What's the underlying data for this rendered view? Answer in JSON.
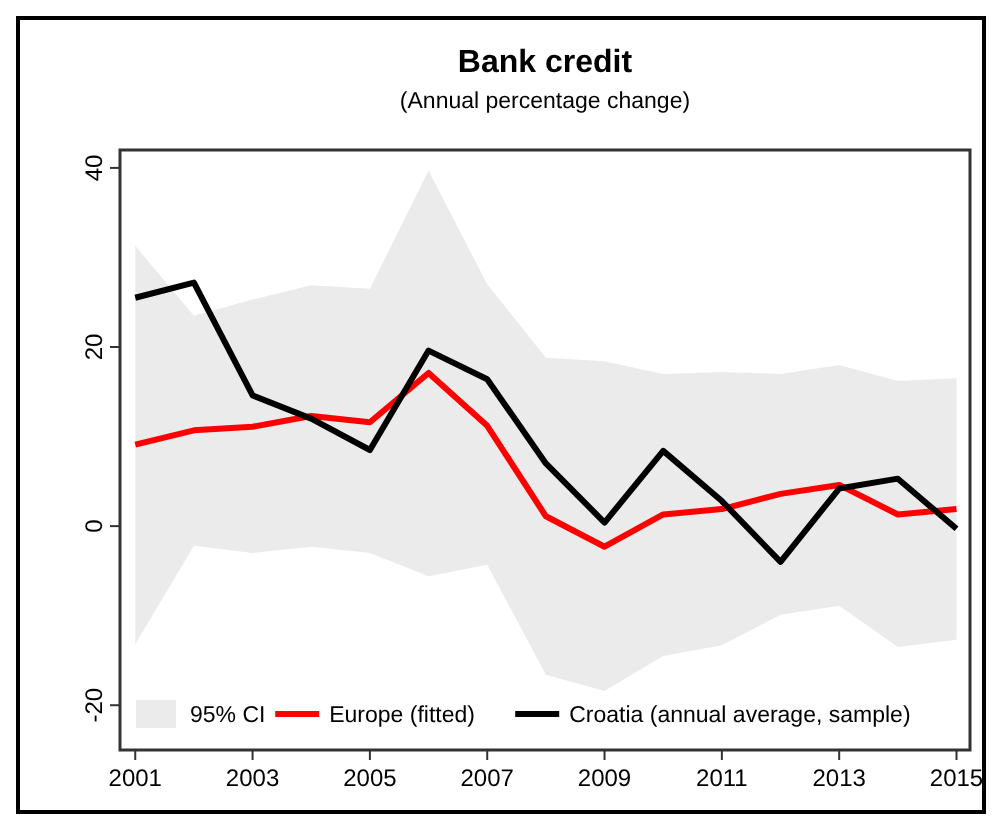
{
  "chart_data": {
    "type": "line",
    "title": "Bank credit",
    "subtitle": "(Annual percentage change)",
    "x": [
      2001,
      2002,
      2003,
      2004,
      2005,
      2006,
      2007,
      2008,
      2009,
      2010,
      2011,
      2012,
      2013,
      2014,
      2015
    ],
    "xlim": [
      2000.74,
      2015.23
    ],
    "xticks": [
      2001,
      2003,
      2005,
      2007,
      2009,
      2011,
      2013,
      2015
    ],
    "ylim": [
      -25,
      42
    ],
    "yticks": [
      -20,
      0,
      20,
      40
    ],
    "legend": "bottom",
    "annotations": [
      "95% CI"
    ],
    "series": [
      {
        "name": "Europe (fitted)",
        "color": "#ff0000",
        "values": [
          9.1,
          10.7,
          11.1,
          12.3,
          11.6,
          17.1,
          11.2,
          1.1,
          -2.3,
          1.3,
          1.9,
          3.6,
          4.6,
          1.3,
          1.9
        ],
        "lower": [
          -13.2,
          -2.2,
          -3,
          -2.3,
          -3,
          -5.6,
          -4.3,
          -16.6,
          -18.4,
          -14.5,
          -13.3,
          -9.9,
          -8.9,
          -13.5,
          -12.7
        ],
        "upper": [
          31.3,
          23.5,
          25.3,
          26.9,
          26.5,
          39.7,
          27,
          18.8,
          18.4,
          17,
          17.2,
          17,
          18,
          16.2,
          16.5
        ]
      },
      {
        "name": "Croatia (annual average, sample)",
        "color": "#000000",
        "values": [
          25.5,
          27.2,
          14.6,
          12,
          8.5,
          19.6,
          16.4,
          7,
          0.4,
          8.4,
          2.8,
          -4,
          4.2,
          5.3,
          -0.3
        ]
      }
    ]
  }
}
